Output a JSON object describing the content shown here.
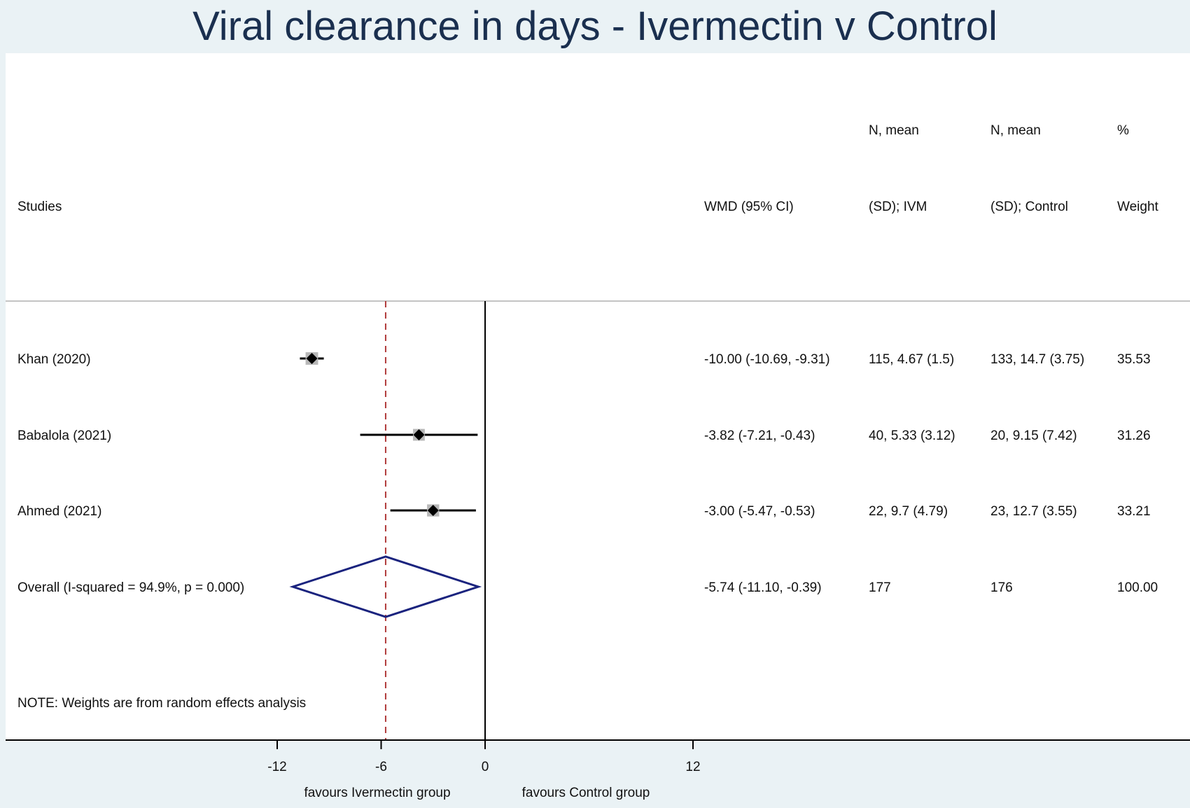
{
  "title": "Viral clearance in days - Ivermectin v Control",
  "headers": {
    "studies": "Studies",
    "effect": "WMD (95% CI)",
    "ivm_line1": "N, mean",
    "ivm_line2": "(SD); IVM",
    "ctrl_line1": "N, mean",
    "ctrl_line2": "(SD); Control",
    "weight_line1": "%",
    "weight_line2": "Weight"
  },
  "note": "NOTE: Weights are from random effects analysis",
  "colors": {
    "background": "#eaf2f5",
    "panel": "#ffffff",
    "title": "#1a2f4f",
    "diamond": "#1a237e",
    "reference_line": "#b03a3a",
    "weight_box": "#b8b8b8"
  },
  "chart_data": {
    "type": "forest",
    "measure": "WMD",
    "xticks": [
      -12,
      -6,
      0,
      12
    ],
    "xlim": [
      -12,
      12
    ],
    "null_line": 0,
    "overall_reference": -5.74,
    "xlabel_left": "favours Ivermectin group",
    "xlabel_right": "favours Control group",
    "studies": [
      {
        "label": "Khan (2020)",
        "est": -10.0,
        "lo": -10.69,
        "hi": -9.31,
        "ci_text": "-10.00 (-10.69, -9.31)",
        "ivm": "115, 4.67 (1.5)",
        "ctrl": "133, 14.7 (3.75)",
        "weight": "35.53"
      },
      {
        "label": "Babalola (2021)",
        "est": -3.82,
        "lo": -7.21,
        "hi": -0.43,
        "ci_text": "-3.82 (-7.21, -0.43)",
        "ivm": "40, 5.33 (3.12)",
        "ctrl": "20, 9.15 (7.42)",
        "weight": "31.26"
      },
      {
        "label": "Ahmed (2021)",
        "est": -3.0,
        "lo": -5.47,
        "hi": -0.53,
        "ci_text": "-3.00 (-5.47, -0.53)",
        "ivm": "22, 9.7 (4.79)",
        "ctrl": "23, 12.7 (3.55)",
        "weight": "33.21"
      }
    ],
    "overall": {
      "label": "Overall  (I-squared = 94.9%, p = 0.000)",
      "est": -5.74,
      "lo": -11.1,
      "hi": -0.39,
      "ci_text": "-5.74 (-11.10, -0.39)",
      "ivm": "177",
      "ctrl": "176",
      "weight": "100.00"
    }
  }
}
